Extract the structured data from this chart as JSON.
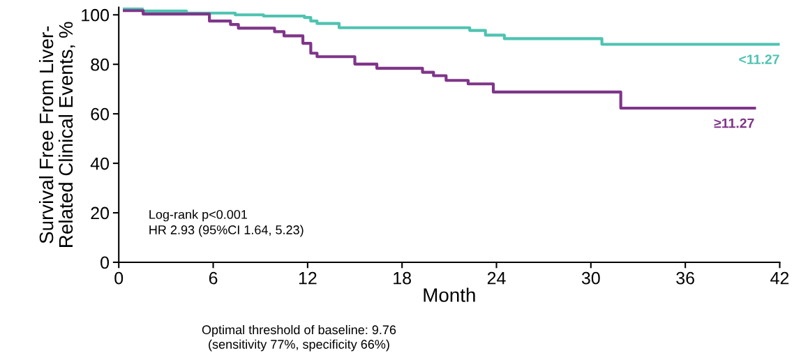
{
  "chart_data": {
    "type": "step",
    "xlabel": "Month",
    "ylabel": "Survival Free From Liver-\nRelated Clinical Events, %",
    "xlim": [
      0,
      42
    ],
    "xticks": [
      0,
      6,
      12,
      18,
      24,
      30,
      36,
      42
    ],
    "ylim": [
      0,
      103
    ],
    "yticks": [
      0,
      20,
      40,
      60,
      80,
      100
    ],
    "grid": false,
    "legend": false,
    "series": [
      {
        "name": "<11.27",
        "color": "#4ec3b0",
        "x": [
          0.35,
          1.5,
          4.3,
          7.4,
          9.2,
          11.8,
          12.2,
          12.6,
          14.0,
          22.3,
          23.3,
          24.5,
          30.7,
          42
        ],
        "values": [
          102.5,
          101.5,
          100.7,
          100.0,
          99.5,
          98.9,
          97.5,
          96.5,
          94.8,
          93.7,
          91.8,
          90.4,
          88.1,
          88.1
        ]
      },
      {
        "name": "≥11.27",
        "color": "#7f3589",
        "x": [
          0.35,
          1.55,
          5.76,
          7.1,
          7.6,
          9.9,
          10.5,
          11.7,
          12.2,
          12.6,
          15.0,
          16.4,
          19.3,
          20.0,
          20.8,
          22.2,
          23.8,
          31.9,
          40.4
        ],
        "values": [
          101.7,
          100.3,
          97.5,
          96.1,
          94.6,
          93.2,
          91.5,
          88.5,
          84.5,
          83.1,
          80.1,
          78.4,
          76.8,
          75.4,
          73.5,
          72.1,
          68.8,
          62.3,
          62.3
        ]
      }
    ],
    "annotations": [
      "Log-rank p<0.001\nHR 2.93 (95%CI 1.64, 5.23)",
      "Optimal threshold of baseline: 9.76\n(sensitivity 77%, specificity 66%)"
    ]
  }
}
